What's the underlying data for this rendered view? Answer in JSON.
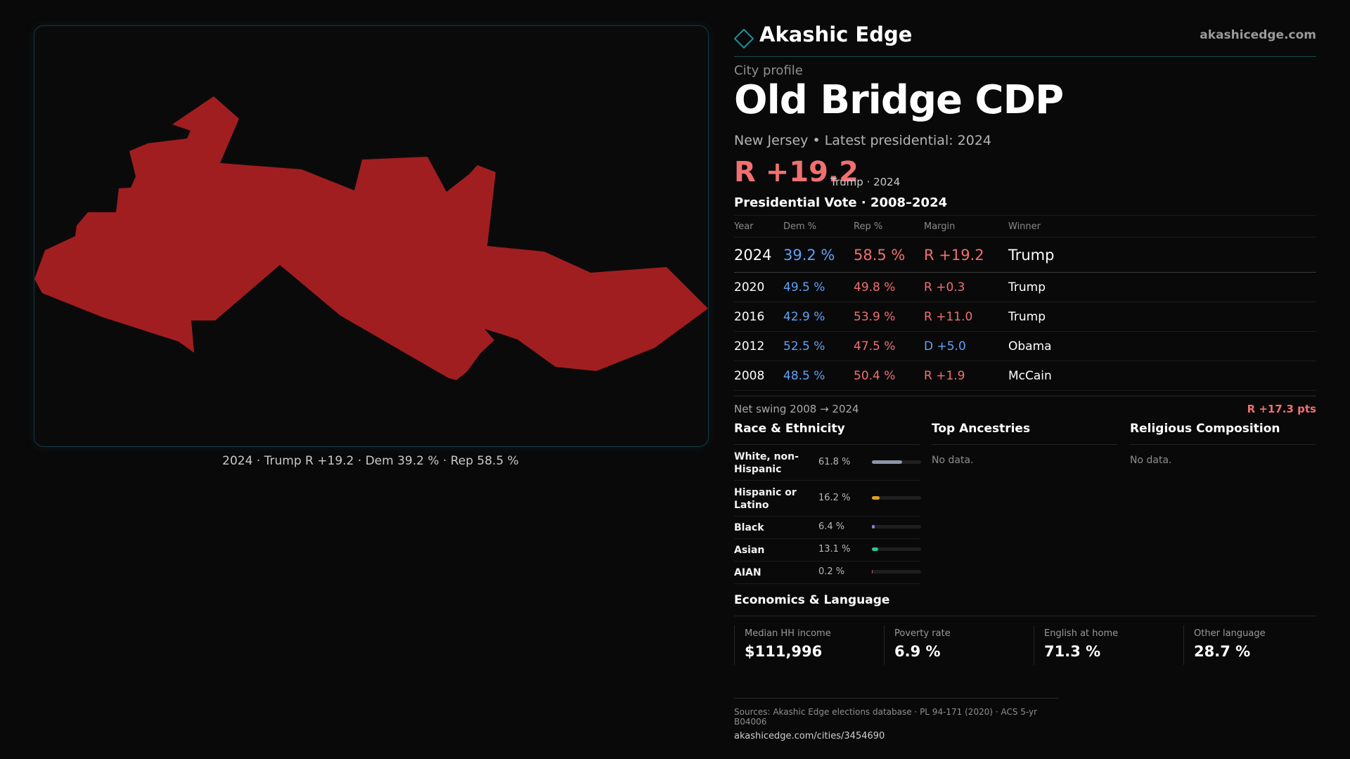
{
  "map": {
    "caption": "2024 · Trump R +19.2 · Dem 39.2 % · Rep 58.5 %",
    "fill_color": "#a11e20"
  },
  "brand": {
    "name": "Akashic Edge",
    "url": "akashicedge.com",
    "logo_icon": "diamond-outline-icon"
  },
  "profile": {
    "kicker": "City profile",
    "name": "Old Bridge CDP",
    "subtitle": "New Jersey • Latest presidential: 2024",
    "headline_margin": "R +19.2",
    "headline_meta": "Trump · 2024"
  },
  "vote": {
    "title": "Presidential Vote · 2008–2024",
    "columns": [
      "Year",
      "Dem %",
      "Rep %",
      "Margin",
      "Winner"
    ],
    "rows": [
      {
        "year": "2024",
        "dem": "39.2 %",
        "rep": "58.5 %",
        "margin": "R +19.2",
        "winner": "Trump",
        "party": "R"
      },
      {
        "year": "2020",
        "dem": "49.5 %",
        "rep": "49.8 %",
        "margin": "R +0.3",
        "winner": "Trump",
        "party": "R"
      },
      {
        "year": "2016",
        "dem": "42.9 %",
        "rep": "53.9 %",
        "margin": "R +11.0",
        "winner": "Trump",
        "party": "R"
      },
      {
        "year": "2012",
        "dem": "52.5 %",
        "rep": "47.5 %",
        "margin": "D +5.0",
        "winner": "Obama",
        "party": "D"
      },
      {
        "year": "2008",
        "dem": "48.5 %",
        "rep": "50.4 %",
        "margin": "R +1.9",
        "winner": "McCain",
        "party": "R"
      }
    ],
    "swing_label": "Net swing 2008 → 2024",
    "swing_value": "R +17.3 pts"
  },
  "race": {
    "title": "Race & Ethnicity",
    "rows": [
      {
        "label": "White, non-Hispanic",
        "pct": "61.8 %",
        "value": 0.618,
        "color": "#8d95a8"
      },
      {
        "label": "Hispanic or Latino",
        "pct": "16.2 %",
        "value": 0.162,
        "color": "#e0a024"
      },
      {
        "label": "Black",
        "pct": "6.4 %",
        "value": 0.064,
        "color": "#8f7fe0"
      },
      {
        "label": "Asian",
        "pct": "13.1 %",
        "value": 0.131,
        "color": "#2fc49a"
      },
      {
        "label": "AIAN",
        "pct": "0.2 %",
        "value": 0.002,
        "color": "#d05a5a"
      }
    ]
  },
  "ancestries": {
    "title": "Top Ancestries",
    "empty": "No data."
  },
  "religion": {
    "title": "Religious Composition",
    "empty": "No data."
  },
  "economics": {
    "title": "Economics & Language",
    "cells": [
      {
        "label": "Median HH income",
        "value": "$111,996"
      },
      {
        "label": "Poverty rate",
        "value": "6.9 %"
      },
      {
        "label": "English at home",
        "value": "71.3 %"
      },
      {
        "label": "Other language",
        "value": "28.7 %"
      }
    ]
  },
  "sources": {
    "line": "Sources: Akashic Edge elections database · PL 94-171 (2020) · ACS 5-yr B04006",
    "url": "akashicedge.com/cities/3454690"
  }
}
